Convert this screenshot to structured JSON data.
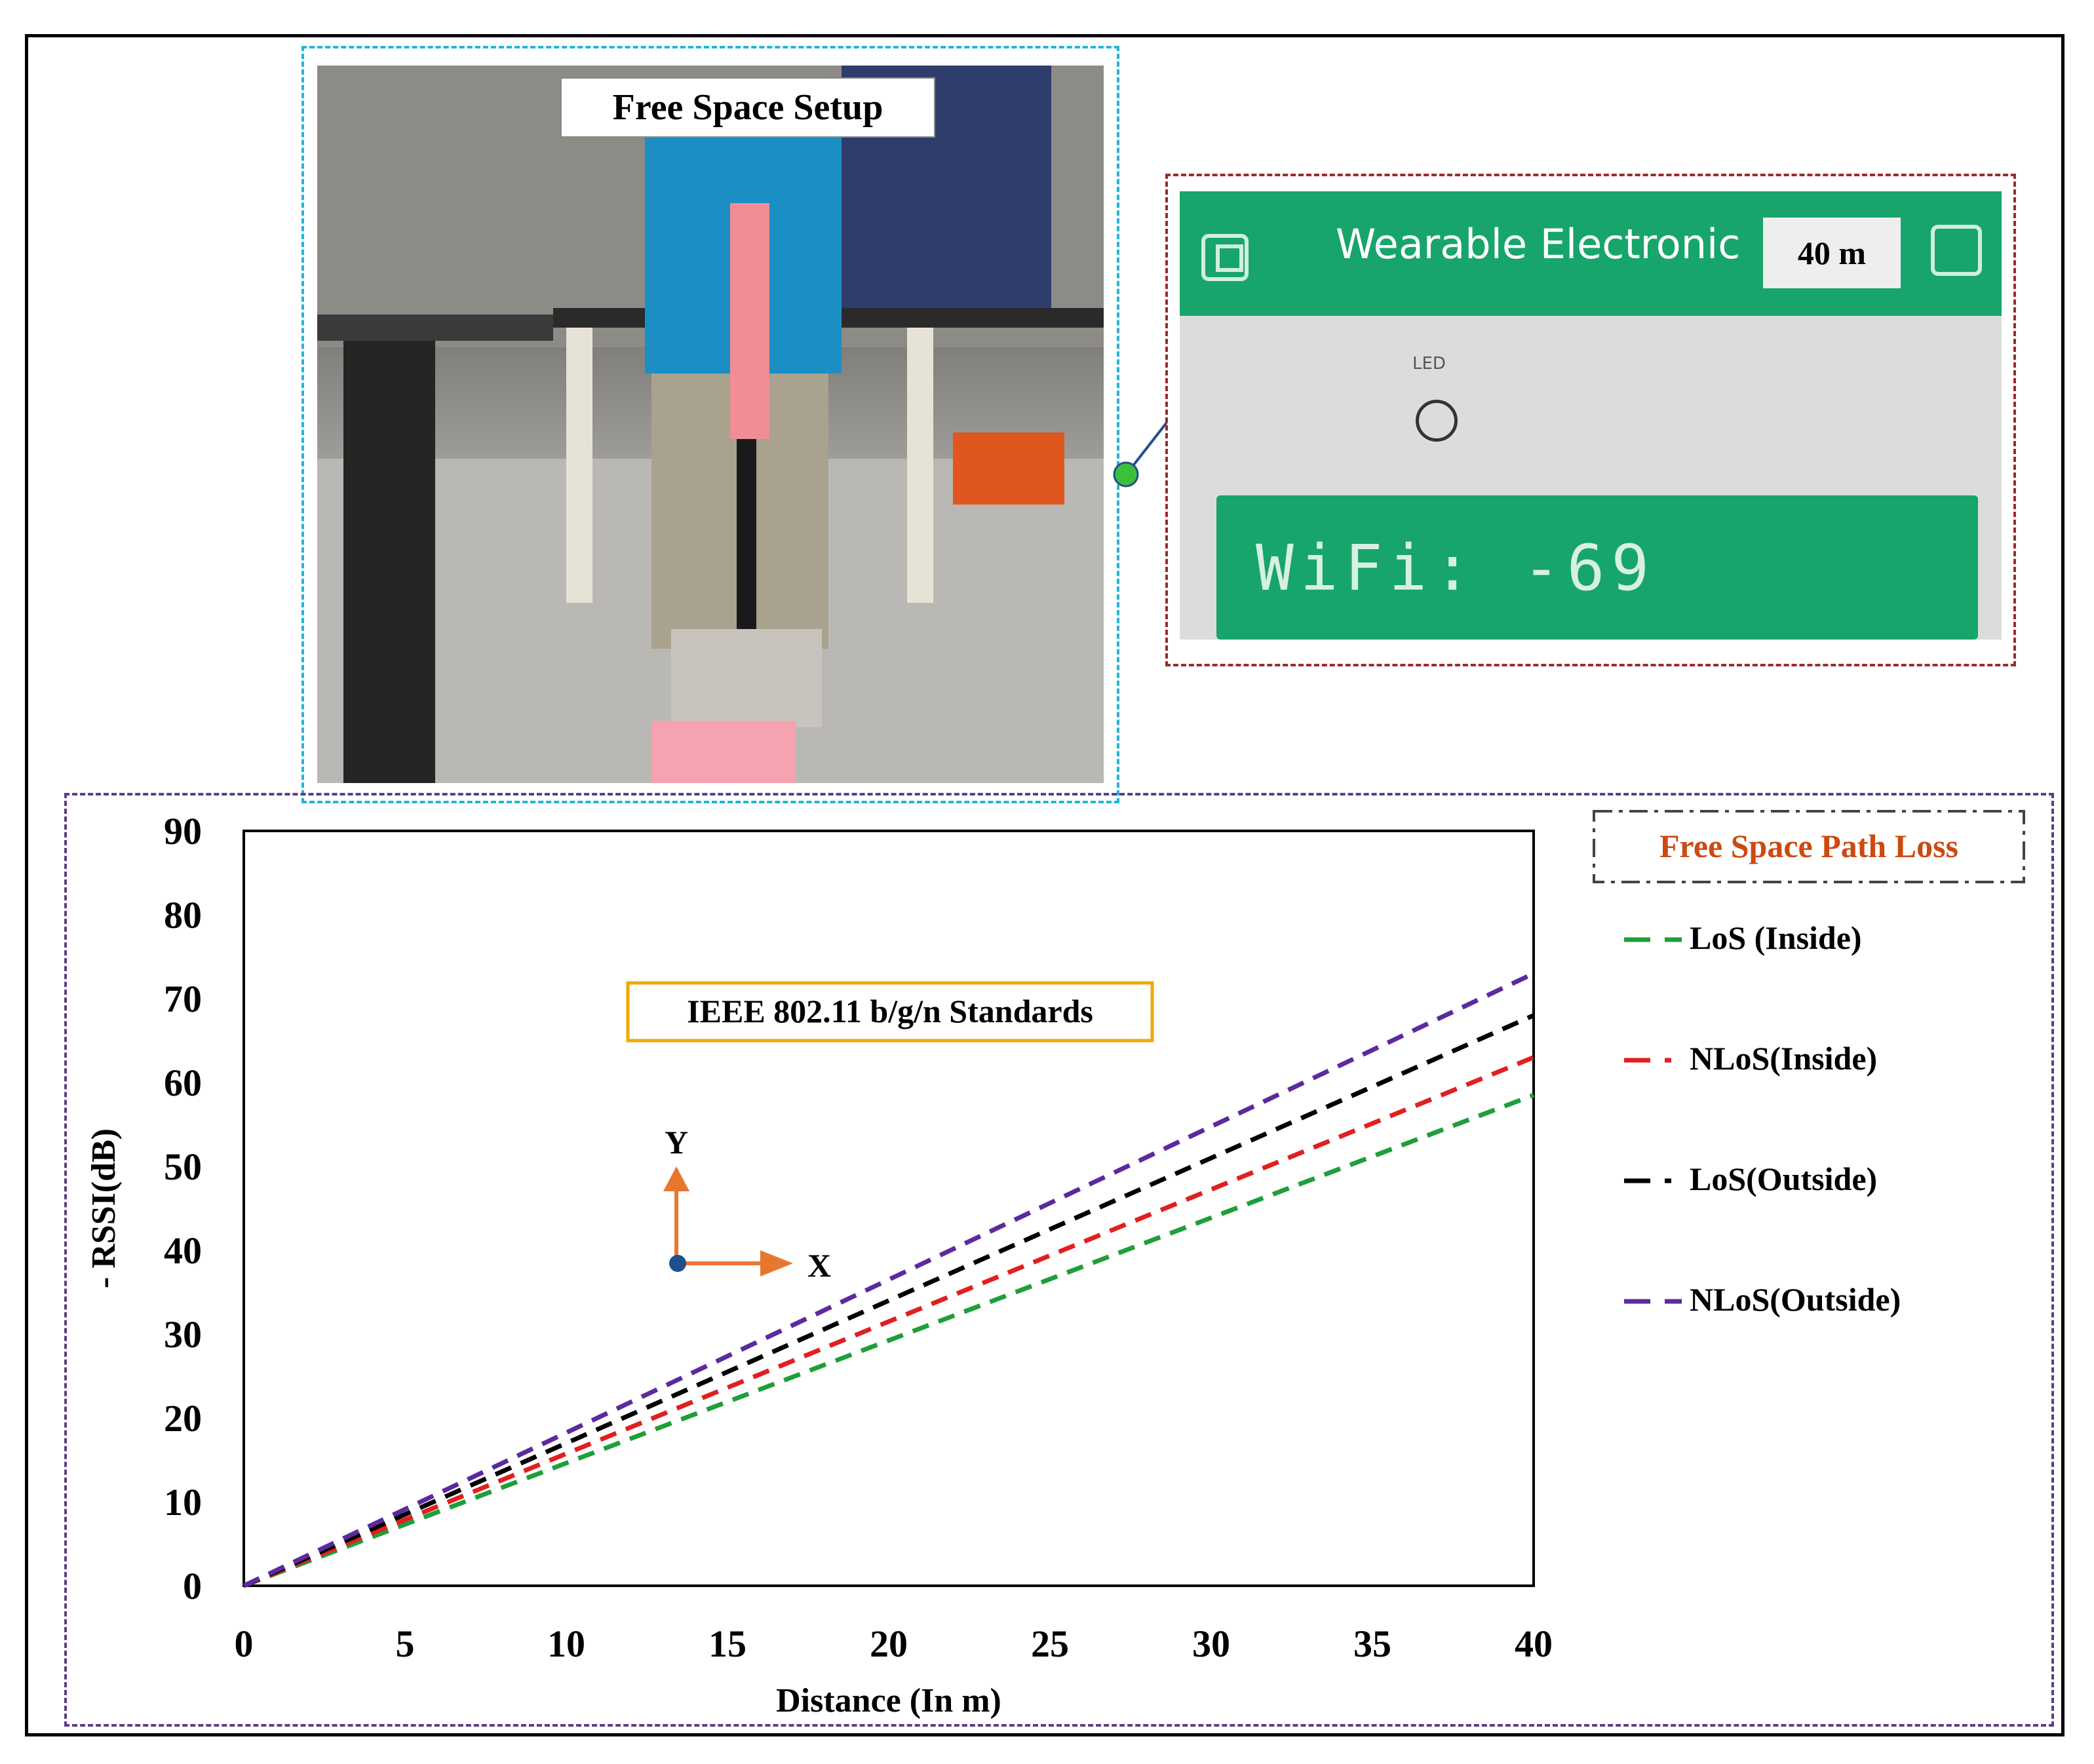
{
  "photo": {
    "label": "Free Space Setup"
  },
  "app": {
    "title": "Wearable Electronic",
    "distance_badge": "40 m",
    "led_label": "LED",
    "wifi_readout": "WiFi: -69"
  },
  "chart_data": {
    "type": "line",
    "title": "",
    "annotation": "IEEE 802.11 b/g/n Standards",
    "legend_title": "Free Space Path Loss",
    "legend_position": "right",
    "xlabel": "Distance (In m)",
    "ylabel": "- RSSI(dB)",
    "xlim": [
      0,
      40
    ],
    "ylim": [
      0,
      90
    ],
    "xticks": [
      0,
      5,
      10,
      15,
      20,
      25,
      30,
      35,
      40
    ],
    "yticks": [
      0,
      10,
      20,
      30,
      40,
      50,
      60,
      70,
      80,
      90
    ],
    "grid": false,
    "axes_glyph": {
      "x": "X",
      "y": "Y"
    },
    "series": [
      {
        "name": "LoS (Inside)",
        "legend_prefix": "- -",
        "color": "#1f9e3a",
        "x": [
          0,
          40
        ],
        "y": [
          0,
          58.5
        ]
      },
      {
        "name": "NLoS(Inside)",
        "legend_prefix": "- ·",
        "color": "#e02020",
        "x": [
          0,
          40
        ],
        "y": [
          0,
          63
        ]
      },
      {
        "name": "LoS(Outside)",
        "legend_prefix": "- ·",
        "color": "#000000",
        "x": [
          0,
          40
        ],
        "y": [
          0,
          68
        ]
      },
      {
        "name": "NLoS(Outside)",
        "legend_prefix": "- -",
        "color": "#5b2a9e",
        "x": [
          0,
          40
        ],
        "y": [
          0,
          73
        ]
      }
    ]
  }
}
